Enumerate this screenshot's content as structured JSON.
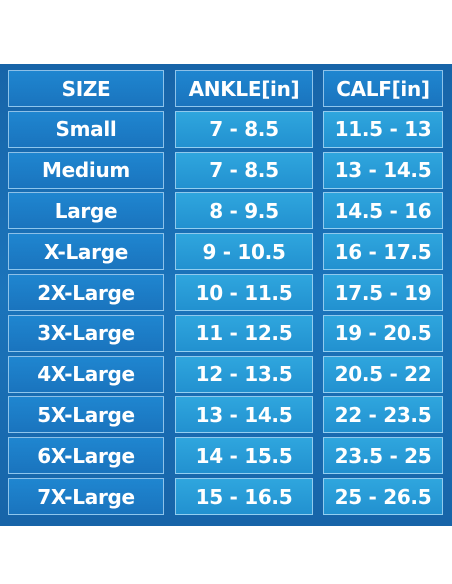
{
  "table": {
    "header": [
      "SIZE",
      "ANKLE[in]",
      "CALF[in]"
    ],
    "rows": [
      [
        "Small",
        "7 - 8.5",
        "11.5 - 13"
      ],
      [
        "Medium",
        "7 - 8.5",
        "13 - 14.5"
      ],
      [
        "Large",
        "8 - 9.5",
        "14.5 - 16"
      ],
      [
        "X-Large",
        "9 - 10.5",
        "16 - 17.5"
      ],
      [
        "2X-Large",
        "10 - 11.5",
        "17.5 - 19"
      ],
      [
        "3X-Large",
        "11 - 12.5",
        "19 - 20.5"
      ],
      [
        "4X-Large",
        "12 - 13.5",
        "20.5 - 22"
      ],
      [
        "5X-Large",
        "13 - 14.5",
        "22 - 23.5"
      ],
      [
        "6X-Large",
        "14 - 15.5",
        "23.5 - 25"
      ],
      [
        "7X-Large",
        "15 - 16.5",
        "25 - 26.5"
      ]
    ]
  }
}
